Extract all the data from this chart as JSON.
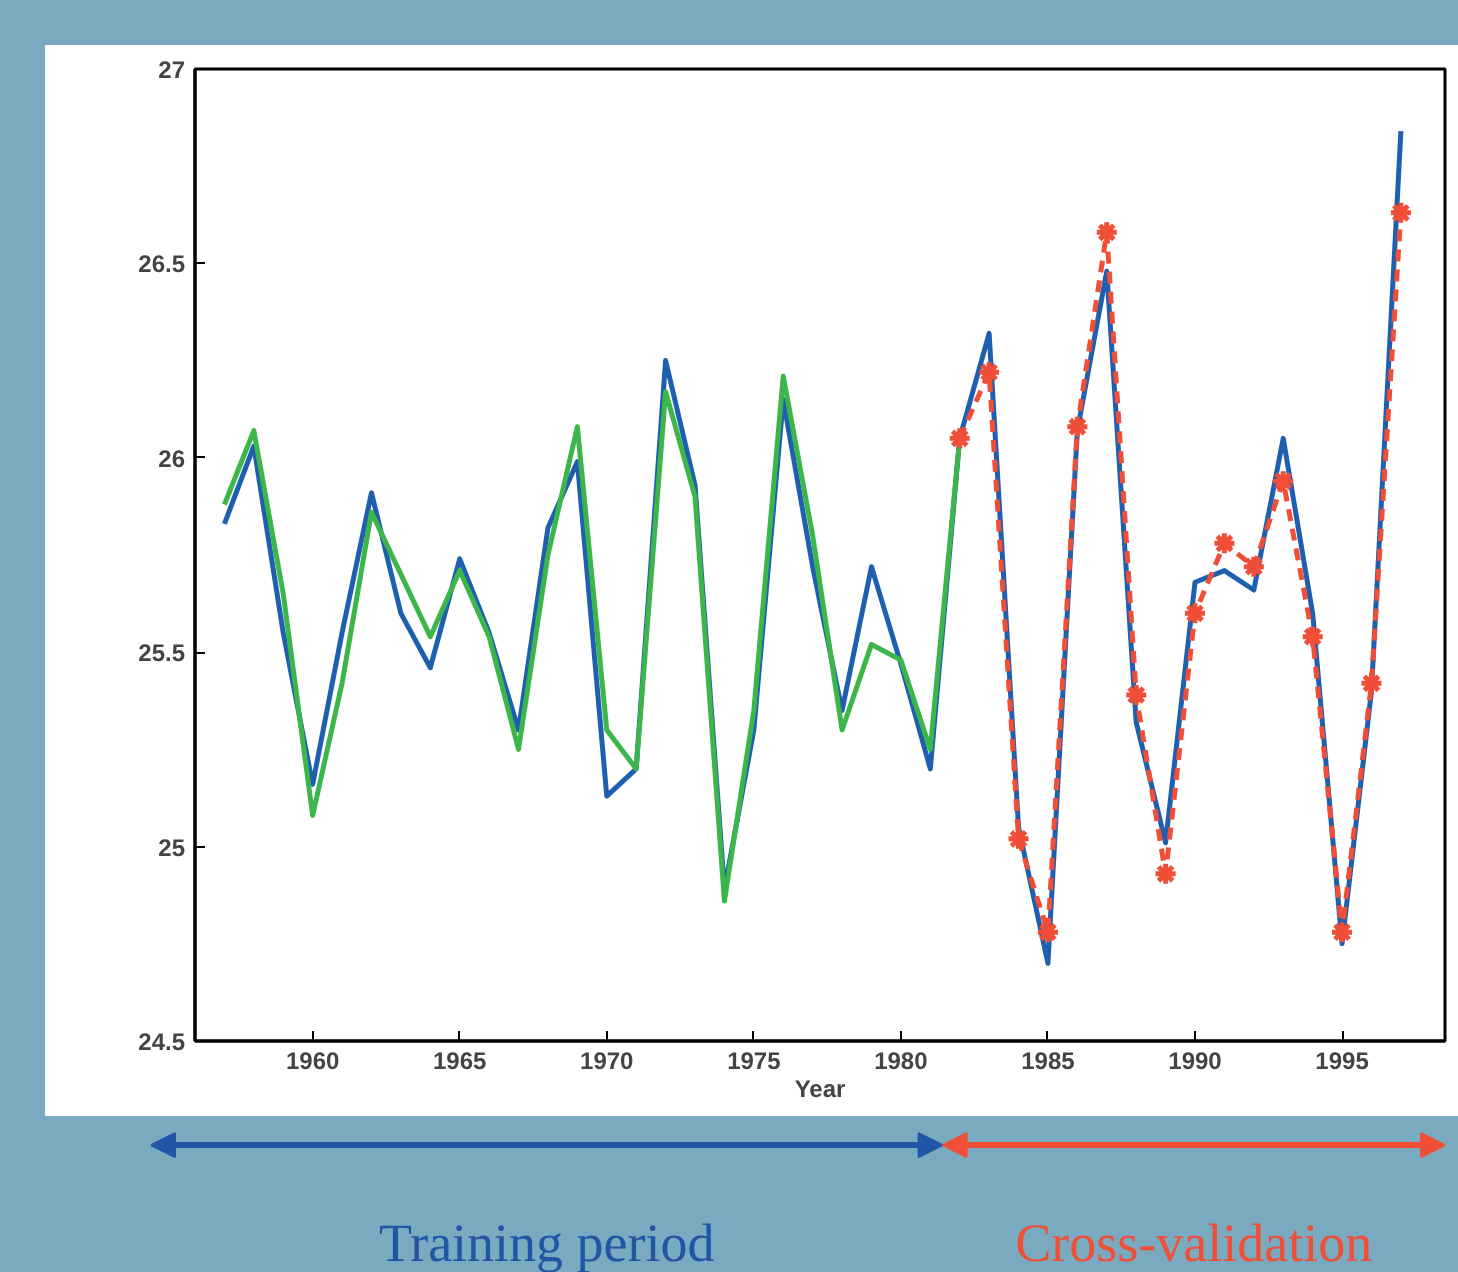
{
  "chart_data": {
    "type": "line",
    "xlabel": "Year",
    "xlim": [
      1956,
      1998.5
    ],
    "ylim": [
      24.5,
      27
    ],
    "xticks": [
      1960,
      1965,
      1970,
      1975,
      1980,
      1985,
      1990,
      1995
    ],
    "yticks": [
      24.5,
      25,
      25.5,
      26,
      26.5,
      27
    ],
    "grid": false,
    "series": [
      {
        "color": "#1f5fb0",
        "marker": "none",
        "line_style": "solid",
        "x": [
          1957,
          1958,
          1959,
          1960,
          1961,
          1962,
          1963,
          1964,
          1965,
          1966,
          1967,
          1968,
          1969,
          1970,
          1971,
          1972,
          1973,
          1974,
          1975,
          1976,
          1977,
          1978,
          1979,
          1980,
          1981,
          1982,
          1983,
          1984,
          1985,
          1986,
          1987,
          1988,
          1989,
          1990,
          1991,
          1992,
          1993,
          1994,
          1995,
          1996,
          1997
        ],
        "values": [
          25.83,
          26.03,
          25.55,
          25.16,
          25.55,
          25.91,
          25.6,
          25.46,
          25.74,
          25.55,
          25.3,
          25.82,
          25.99,
          25.13,
          25.2,
          26.25,
          25.93,
          24.89,
          25.3,
          26.15,
          25.72,
          25.35,
          25.72,
          25.47,
          25.2,
          26.05,
          26.32,
          25.05,
          24.7,
          26.07,
          26.48,
          25.32,
          25.01,
          25.68,
          25.71,
          25.66,
          26.05,
          25.6,
          24.75,
          25.4,
          26.84
        ]
      },
      {
        "color": "#3cb54a",
        "marker": "none",
        "line_style": "solid",
        "x": [
          1957,
          1958,
          1959,
          1960,
          1961,
          1962,
          1963,
          1964,
          1965,
          1966,
          1967,
          1968,
          1969,
          1970,
          1971,
          1972,
          1973,
          1974,
          1975,
          1976,
          1977,
          1978,
          1979,
          1980,
          1981,
          1982
        ],
        "values": [
          25.88,
          26.07,
          25.65,
          25.08,
          25.42,
          25.86,
          25.7,
          25.54,
          25.71,
          25.54,
          25.25,
          25.75,
          26.08,
          25.3,
          25.2,
          26.17,
          25.9,
          24.86,
          25.35,
          26.21,
          25.8,
          25.3,
          25.52,
          25.48,
          25.25,
          26.05
        ]
      },
      {
        "color": "#f04e37",
        "marker": "cross",
        "line_style": "dashed",
        "x": [
          1982,
          1983,
          1984,
          1985,
          1986,
          1987,
          1988,
          1989,
          1990,
          1991,
          1992,
          1993,
          1994,
          1995,
          1996,
          1997
        ],
        "values": [
          26.05,
          26.22,
          25.02,
          24.78,
          26.08,
          26.58,
          25.39,
          24.93,
          25.6,
          25.78,
          25.72,
          25.94,
          25.54,
          24.78,
          25.42,
          26.63
        ]
      }
    ],
    "annotations": [
      "Training period",
      "Cross-validation"
    ]
  }
}
